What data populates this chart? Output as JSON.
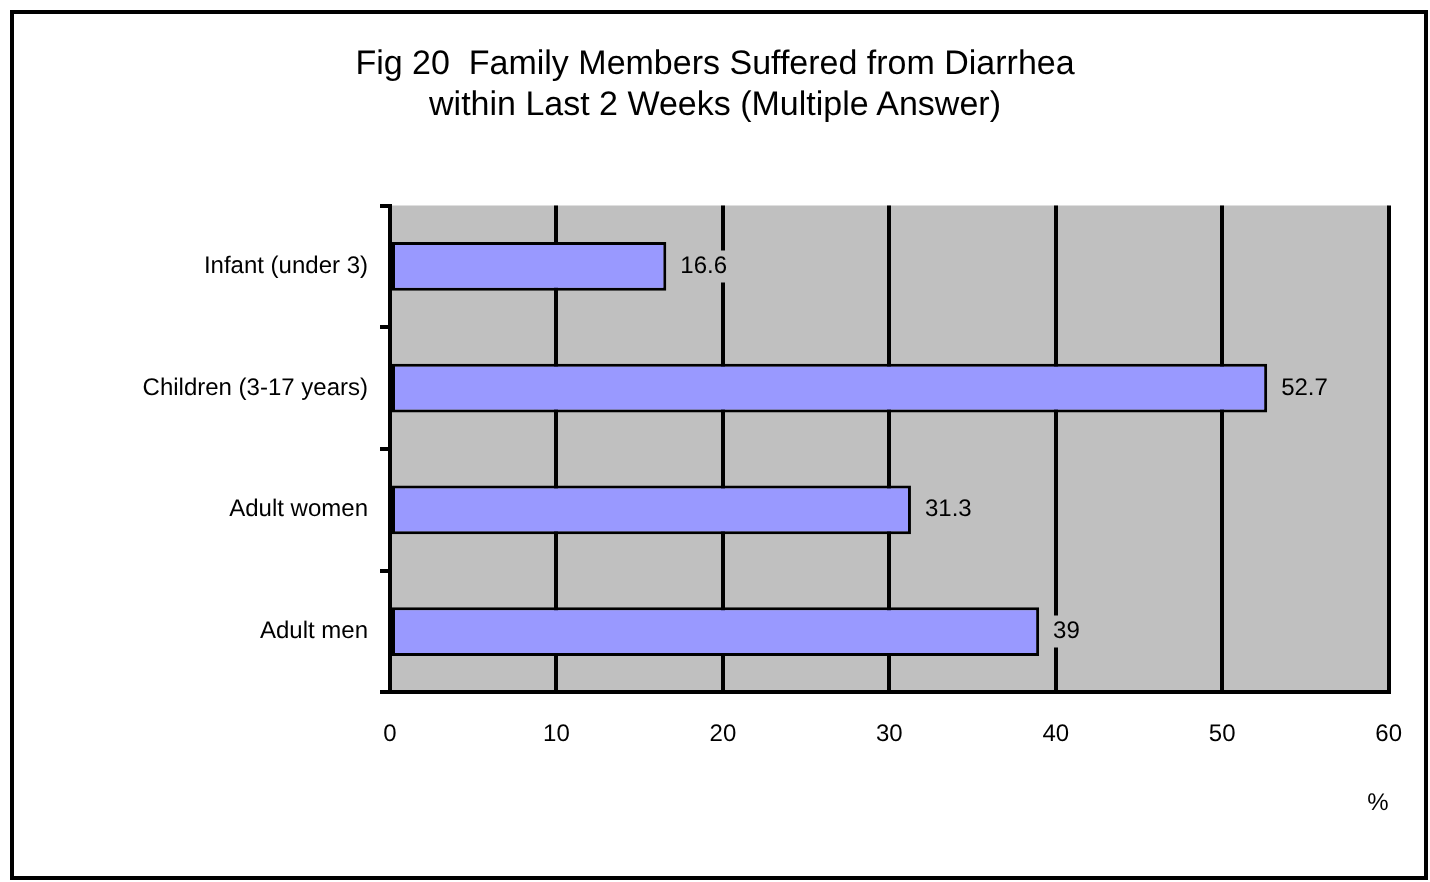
{
  "chart_data": {
    "type": "bar",
    "orientation": "horizontal",
    "title": "Fig 20  Family Members Suffered from Diarrhea\nwithin Last 2 Weeks (Multiple Answer)",
    "xlabel": "%",
    "categories": [
      "Infant (under 3)",
      "Children (3-17 years)",
      "Adult women",
      "Adult men"
    ],
    "values": [
      16.6,
      52.7,
      31.3,
      39
    ],
    "color": "#9999ff",
    "xlim": [
      0,
      60
    ],
    "xticks": [
      0,
      10,
      20,
      30,
      40,
      50,
      60
    ],
    "grid": "x",
    "data_labels": true
  }
}
